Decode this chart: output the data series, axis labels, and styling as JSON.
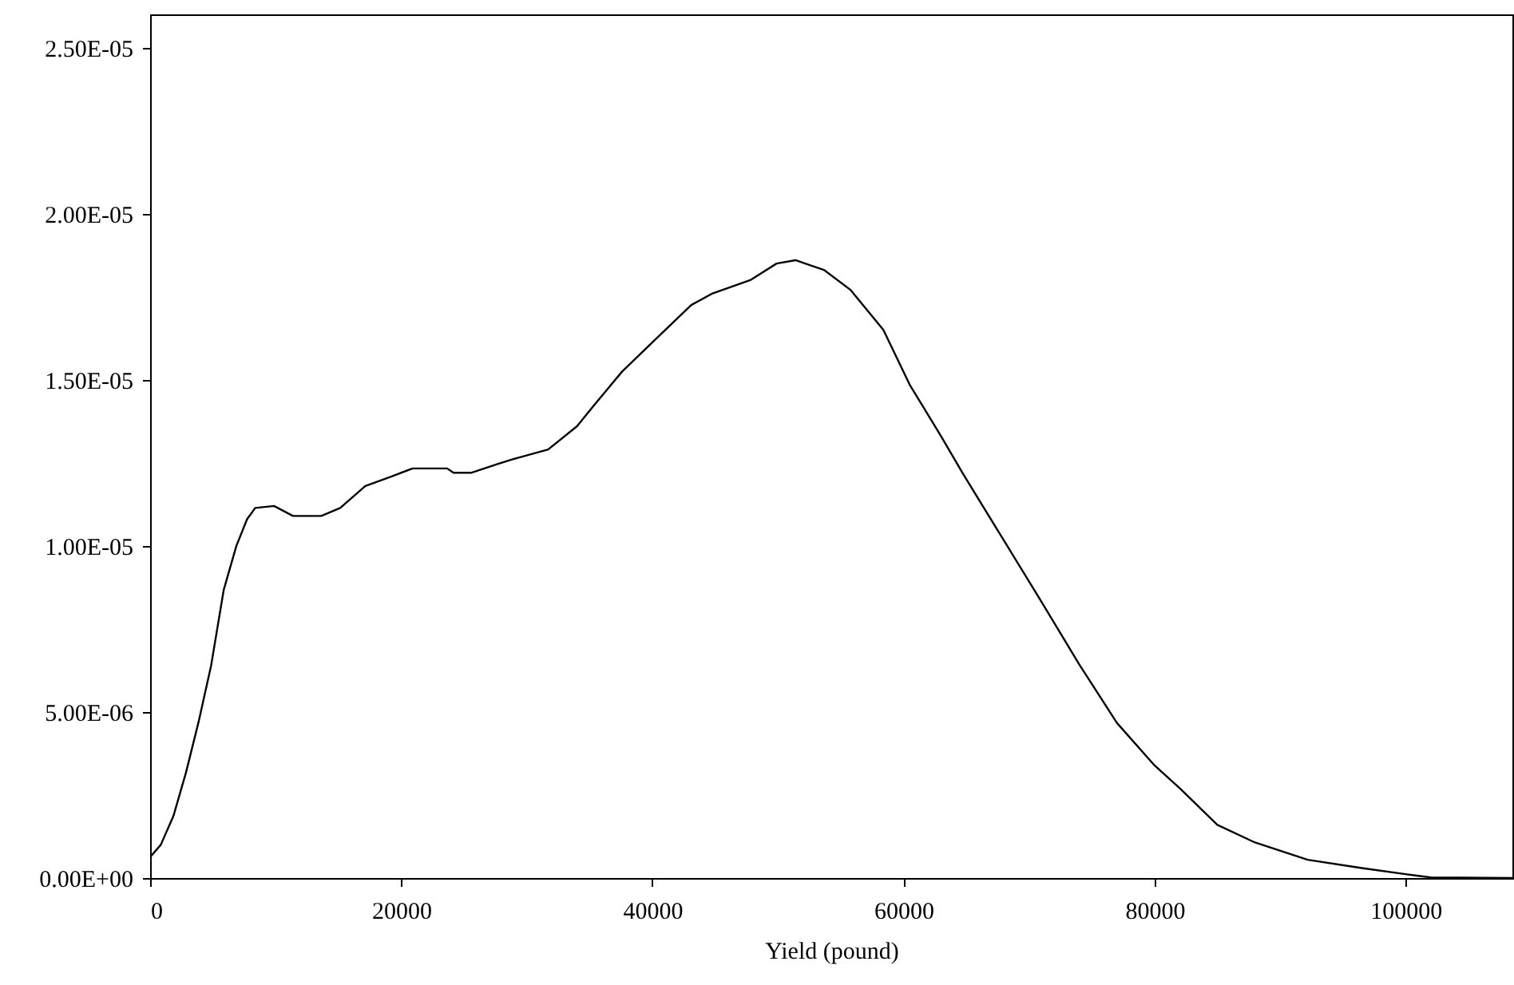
{
  "chart_data": {
    "type": "line",
    "xlabel": "Yield (pound)",
    "x": [
      0,
      850,
      1850,
      2860,
      3860,
      4860,
      5860,
      6870,
      7720,
      8370,
      9870,
      11380,
      13630,
      15140,
      17140,
      19150,
      20900,
      23660,
      24160,
      25560,
      27670,
      28820,
      31700,
      34000,
      35500,
      37600,
      40200,
      43100,
      44800,
      47800,
      49900,
      51400,
      53700,
      55800,
      58400,
      60500,
      63000,
      64700,
      66800,
      68100,
      70700,
      74000,
      77000,
      80000,
      82100,
      85000,
      88000,
      92200,
      96500,
      100100,
      102000,
      108500
    ],
    "series": [
      {
        "color": "#000000",
        "values": [
          6.3e-07,
          1e-06,
          1.86e-06,
          3.18e-06,
          4.7e-06,
          6.4e-06,
          8.67e-06,
          1e-05,
          1.08e-05,
          1.114e-05,
          1.12e-05,
          1.09e-05,
          1.09e-05,
          1.114e-05,
          1.18e-05,
          1.208e-05,
          1.233e-05,
          1.233e-05,
          1.22e-05,
          1.22e-05,
          1.246e-05,
          1.26e-05,
          1.29e-05,
          1.36e-05,
          1.43e-05,
          1.525e-05,
          1.62e-05,
          1.725e-05,
          1.76e-05,
          1.8e-05,
          1.85e-05,
          1.86e-05,
          1.83e-05,
          1.77e-05,
          1.65e-05,
          1.485e-05,
          1.33e-05,
          1.22e-05,
          1.09e-05,
          1.01e-05,
          8.5e-06,
          6.43e-06,
          4.67e-06,
          3.39e-06,
          2.67e-06,
          1.6e-06,
          1.07e-06,
          5.5e-07,
          3e-07,
          1.1e-07,
          2e-08,
          0
        ]
      }
    ],
    "xlim": [
      0,
      108500
    ],
    "ylim": [
      0,
      2.6e-05
    ],
    "xticks": [
      0,
      20000,
      40000,
      60000,
      80000,
      100000
    ],
    "yticks": [
      {
        "value": 0,
        "label": "0.00E+00"
      },
      {
        "value": 5e-06,
        "label": "5.00E-06"
      },
      {
        "value": 1e-05,
        "label": "1.00E-05"
      },
      {
        "value": 1.5e-05,
        "label": "1.50E-05"
      },
      {
        "value": 2e-05,
        "label": "2.00E-05"
      },
      {
        "value": 2.5e-05,
        "label": "2.50E-05"
      }
    ],
    "grid": false
  }
}
